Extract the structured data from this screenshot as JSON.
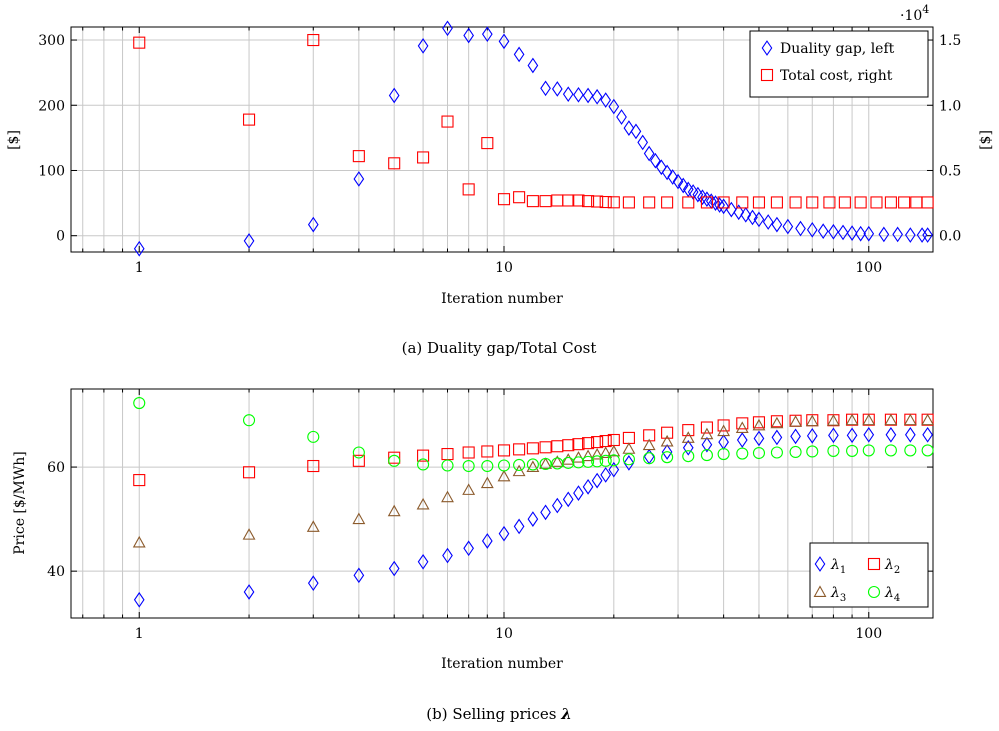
{
  "chart_data": [
    {
      "type": "scatter",
      "caption": "(a) Duality gap/Total Cost",
      "xlabel": "Iteration number",
      "xscale": "log",
      "xlim": [
        0.65,
        150
      ],
      "xticks": [
        1,
        10,
        100
      ],
      "xtick_labels": [
        "1",
        "10",
        "100"
      ],
      "ylabel_left": "[$]",
      "ylim_left": [
        -25,
        320
      ],
      "yticks_left": [
        0,
        100,
        200,
        300
      ],
      "ylabel_right": "[$]",
      "ylim_right": [
        -0.125,
        1.6
      ],
      "yticks_right": [
        0.0,
        0.5,
        1.0,
        1.5
      ],
      "ytick_labels_right": [
        "0.0",
        "0.5",
        "1.0",
        "1.5"
      ],
      "right_axis_multiplier": "·10",
      "right_axis_exponent": "4",
      "grid": true,
      "legend_position": "top-right",
      "series": [
        {
          "name": "Duality gap, left",
          "axis": "left",
          "marker": "diamond",
          "color": "#0000ff",
          "points": [
            [
              1,
              -20
            ],
            [
              2,
              -8
            ],
            [
              3,
              17
            ],
            [
              4,
              87
            ],
            [
              5,
              215
            ],
            [
              6,
              291
            ],
            [
              7,
              318
            ],
            [
              8,
              307
            ],
            [
              9,
              309
            ],
            [
              10,
              298
            ],
            [
              11,
              278
            ],
            [
              12,
              261
            ],
            [
              13,
              226
            ],
            [
              14,
              225
            ],
            [
              15,
              217
            ],
            [
              16,
              216
            ],
            [
              17,
              215
            ],
            [
              18,
              213
            ],
            [
              19,
              208
            ],
            [
              20,
              198
            ],
            [
              21,
              182
            ],
            [
              22,
              165
            ],
            [
              23,
              160
            ],
            [
              24,
              143
            ],
            [
              25,
              126
            ],
            [
              26,
              115
            ],
            [
              27,
              105
            ],
            [
              28,
              97
            ],
            [
              29,
              90
            ],
            [
              30,
              83
            ],
            [
              31,
              77
            ],
            [
              32,
              71
            ],
            [
              33,
              67
            ],
            [
              34,
              63
            ],
            [
              35,
              59
            ],
            [
              36,
              56
            ],
            [
              37,
              53
            ],
            [
              38,
              50
            ],
            [
              39,
              47
            ],
            [
              40,
              45
            ],
            [
              42,
              40
            ],
            [
              44,
              36
            ],
            [
              46,
              32
            ],
            [
              48,
              28
            ],
            [
              50,
              25
            ],
            [
              53,
              21
            ],
            [
              56,
              17
            ],
            [
              60,
              14
            ],
            [
              65,
              11
            ],
            [
              70,
              9
            ],
            [
              75,
              7
            ],
            [
              80,
              6
            ],
            [
              85,
              5
            ],
            [
              90,
              4
            ],
            [
              95,
              3
            ],
            [
              100,
              3
            ],
            [
              110,
              2
            ],
            [
              120,
              2
            ],
            [
              130,
              1
            ],
            [
              140,
              1
            ],
            [
              145,
              1
            ]
          ]
        },
        {
          "name": "Total cost, right",
          "axis": "right",
          "marker": "square",
          "color": "#ff0000",
          "points": [
            [
              1,
              1.48
            ],
            [
              2,
              0.89
            ],
            [
              3,
              1.5
            ],
            [
              4,
              0.61
            ],
            [
              5,
              0.555
            ],
            [
              6,
              0.6
            ],
            [
              7,
              0.875
            ],
            [
              8,
              0.355
            ],
            [
              9,
              0.71
            ],
            [
              10,
              0.28
            ],
            [
              11,
              0.295
            ],
            [
              12,
              0.265
            ],
            [
              13,
              0.265
            ],
            [
              14,
              0.27
            ],
            [
              15,
              0.27
            ],
            [
              16,
              0.27
            ],
            [
              17,
              0.265
            ],
            [
              18,
              0.262
            ],
            [
              19,
              0.258
            ],
            [
              20,
              0.256
            ],
            [
              22,
              0.255
            ],
            [
              25,
              0.255
            ],
            [
              28,
              0.255
            ],
            [
              32,
              0.255
            ],
            [
              36,
              0.255
            ],
            [
              40,
              0.255
            ],
            [
              45,
              0.255
            ],
            [
              50,
              0.255
            ],
            [
              56,
              0.255
            ],
            [
              63,
              0.255
            ],
            [
              70,
              0.255
            ],
            [
              78,
              0.255
            ],
            [
              86,
              0.255
            ],
            [
              95,
              0.255
            ],
            [
              105,
              0.255
            ],
            [
              115,
              0.255
            ],
            [
              125,
              0.255
            ],
            [
              135,
              0.255
            ],
            [
              145,
              0.255
            ]
          ]
        }
      ]
    },
    {
      "type": "scatter",
      "caption_prefix": "(b) Selling prices ",
      "caption_symbol": "λ",
      "xlabel": "Iteration number",
      "xscale": "log",
      "xlim": [
        0.65,
        150
      ],
      "xticks": [
        1,
        10,
        100
      ],
      "xtick_labels": [
        "1",
        "10",
        "100"
      ],
      "ylabel": "Price [$/MWh]",
      "ylim": [
        31,
        75
      ],
      "yticks": [
        40,
        60
      ],
      "grid": true,
      "legend_position": "bottom-right",
      "series": [
        {
          "name": "λ",
          "subscript": "1",
          "marker": "diamond",
          "color": "#0000ff",
          "points": [
            [
              1,
              34.5
            ],
            [
              2,
              36
            ],
            [
              3,
              37.7
            ],
            [
              4,
              39.2
            ],
            [
              5,
              40.5
            ],
            [
              6,
              41.8
            ],
            [
              7,
              43
            ],
            [
              8,
              44.4
            ],
            [
              9,
              45.8
            ],
            [
              10,
              47.2
            ],
            [
              11,
              48.6
            ],
            [
              12,
              50
            ],
            [
              13,
              51.3
            ],
            [
              14,
              52.6
            ],
            [
              15,
              53.8
            ],
            [
              16,
              55
            ],
            [
              17,
              56.2
            ],
            [
              18,
              57.4
            ],
            [
              19,
              58.5
            ],
            [
              20,
              59.5
            ],
            [
              22,
              60.8
            ],
            [
              25,
              62
            ],
            [
              28,
              62.9
            ],
            [
              32,
              63.7
            ],
            [
              36,
              64.3
            ],
            [
              40,
              64.8
            ],
            [
              45,
              65.2
            ],
            [
              50,
              65.5
            ],
            [
              56,
              65.7
            ],
            [
              63,
              65.9
            ],
            [
              70,
              66
            ],
            [
              80,
              66.1
            ],
            [
              90,
              66.1
            ],
            [
              100,
              66.2
            ],
            [
              115,
              66.2
            ],
            [
              130,
              66.2
            ],
            [
              145,
              66.2
            ]
          ]
        },
        {
          "name": "λ",
          "subscript": "2",
          "marker": "square",
          "color": "#ff0000",
          "points": [
            [
              1,
              57.5
            ],
            [
              2,
              59
            ],
            [
              3,
              60.2
            ],
            [
              4,
              61.2
            ],
            [
              5,
              61.8
            ],
            [
              6,
              62.2
            ],
            [
              7,
              62.5
            ],
            [
              8,
              62.8
            ],
            [
              9,
              63
            ],
            [
              10,
              63.2
            ],
            [
              11,
              63.4
            ],
            [
              12,
              63.6
            ],
            [
              13,
              63.8
            ],
            [
              14,
              64
            ],
            [
              15,
              64.2
            ],
            [
              16,
              64.4
            ],
            [
              17,
              64.6
            ],
            [
              18,
              64.8
            ],
            [
              19,
              65
            ],
            [
              20,
              65.2
            ],
            [
              22,
              65.6
            ],
            [
              25,
              66.1
            ],
            [
              28,
              66.6
            ],
            [
              32,
              67.1
            ],
            [
              36,
              67.6
            ],
            [
              40,
              68
            ],
            [
              45,
              68.4
            ],
            [
              50,
              68.6
            ],
            [
              56,
              68.8
            ],
            [
              63,
              68.9
            ],
            [
              70,
              69
            ],
            [
              80,
              69
            ],
            [
              90,
              69.1
            ],
            [
              100,
              69.1
            ],
            [
              115,
              69.1
            ],
            [
              130,
              69.1
            ],
            [
              145,
              69.1
            ]
          ]
        },
        {
          "name": "λ",
          "subscript": "3",
          "marker": "triangle",
          "color": "#8b5a2b",
          "points": [
            [
              1,
              45.5
            ],
            [
              2,
              47
            ],
            [
              3,
              48.5
            ],
            [
              4,
              50
            ],
            [
              5,
              51.5
            ],
            [
              6,
              52.8
            ],
            [
              7,
              54.2
            ],
            [
              8,
              55.6
            ],
            [
              9,
              56.9
            ],
            [
              10,
              58.2
            ],
            [
              11,
              59.2
            ],
            [
              12,
              60
            ],
            [
              13,
              60.6
            ],
            [
              14,
              61
            ],
            [
              15,
              61.4
            ],
            [
              16,
              61.8
            ],
            [
              17,
              62.1
            ],
            [
              18,
              62.4
            ],
            [
              19,
              62.7
            ],
            [
              20,
              63
            ],
            [
              22,
              63.5
            ],
            [
              25,
              64.2
            ],
            [
              28,
              64.9
            ],
            [
              32,
              65.6
            ],
            [
              36,
              66.3
            ],
            [
              40,
              66.9
            ],
            [
              45,
              67.5
            ],
            [
              50,
              68
            ],
            [
              56,
              68.4
            ],
            [
              63,
              68.7
            ],
            [
              70,
              68.8
            ],
            [
              80,
              68.9
            ],
            [
              90,
              69
            ],
            [
              100,
              69
            ],
            [
              115,
              69
            ],
            [
              130,
              69
            ],
            [
              145,
              69
            ]
          ]
        },
        {
          "name": "λ",
          "subscript": "4",
          "marker": "circle",
          "color": "#00ff00",
          "points": [
            [
              1,
              72.3
            ],
            [
              2,
              69
            ],
            [
              3,
              65.8
            ],
            [
              4,
              62.8
            ],
            [
              5,
              61.2
            ],
            [
              6,
              60.5
            ],
            [
              7,
              60.3
            ],
            [
              8,
              60.2
            ],
            [
              9,
              60.2
            ],
            [
              10,
              60.3
            ],
            [
              11,
              60.4
            ],
            [
              12,
              60.5
            ],
            [
              13,
              60.6
            ],
            [
              14,
              60.7
            ],
            [
              15,
              60.8
            ],
            [
              16,
              60.9
            ],
            [
              17,
              61
            ],
            [
              18,
              61.1
            ],
            [
              19,
              61.2
            ],
            [
              20,
              61.3
            ],
            [
              22,
              61.5
            ],
            [
              25,
              61.7
            ],
            [
              28,
              61.9
            ],
            [
              32,
              62.1
            ],
            [
              36,
              62.3
            ],
            [
              40,
              62.5
            ],
            [
              45,
              62.6
            ],
            [
              50,
              62.7
            ],
            [
              56,
              62.8
            ],
            [
              63,
              62.9
            ],
            [
              70,
              63
            ],
            [
              80,
              63.1
            ],
            [
              90,
              63.1
            ],
            [
              100,
              63.2
            ],
            [
              115,
              63.2
            ],
            [
              130,
              63.2
            ],
            [
              145,
              63.2
            ]
          ]
        }
      ]
    }
  ]
}
